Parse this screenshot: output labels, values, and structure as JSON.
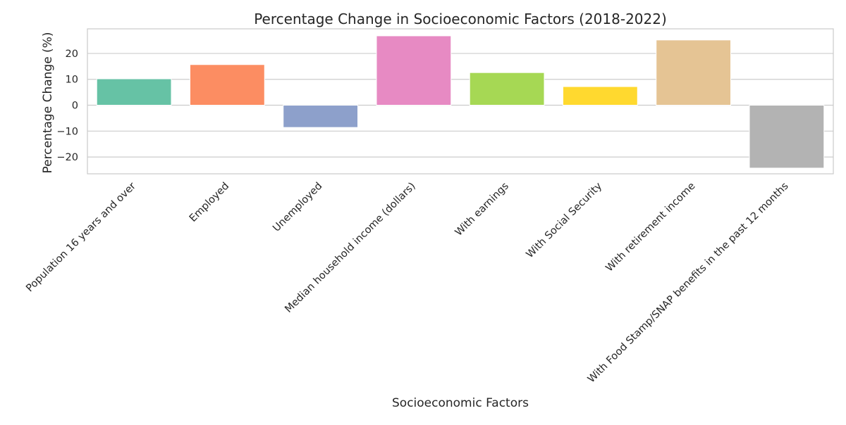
{
  "chart_data": {
    "type": "bar",
    "title": "Percentage Change in Socioeconomic Factors (2018-2022)",
    "xlabel": "Socioeconomic Factors",
    "ylabel": "Percentage Change (%)",
    "ylim": [
      -26.5,
      29.5
    ],
    "yticks": [
      -20,
      -10,
      0,
      10,
      20
    ],
    "grid": true,
    "legend": "none",
    "categories": [
      "Population 16 years and over",
      "Employed",
      "Unemployed",
      "Median household income (dollars)",
      "With earnings",
      "With Social Security",
      "With retirement income",
      "With Food Stamp/SNAP benefits in the past 12 months"
    ],
    "values": [
      10.2,
      15.7,
      -8.6,
      26.8,
      12.6,
      7.2,
      25.2,
      -24.3
    ],
    "colors": [
      "#66c2a5",
      "#fc8d62",
      "#8da0cb",
      "#e78ac3",
      "#a6d854",
      "#ffd92f",
      "#e5c494",
      "#b3b3b3"
    ]
  }
}
